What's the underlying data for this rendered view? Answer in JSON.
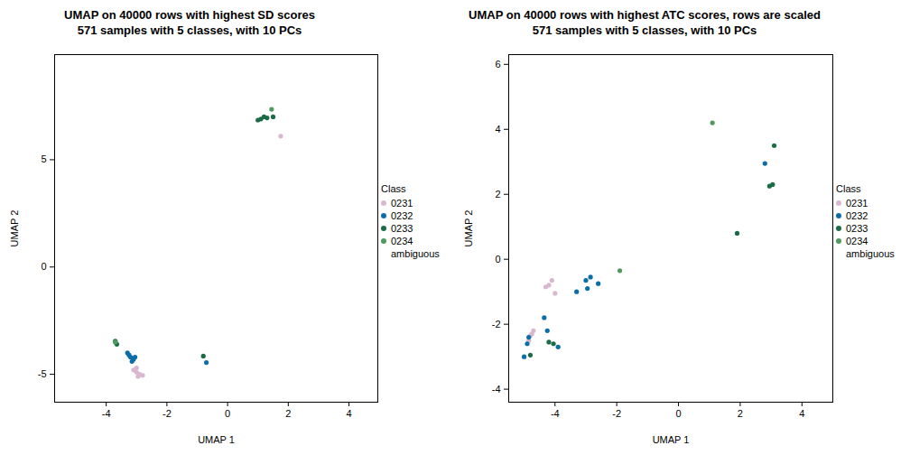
{
  "chart_data": [
    {
      "type": "scatter",
      "title": "UMAP on 40000 rows with highest SD scores",
      "subtitle": "571 samples with 5 classes, with 10 PCs",
      "xlabel": "UMAP 1",
      "ylabel": "UMAP 2",
      "legend_title": "Class",
      "xlim": [
        -5.7,
        4.95
      ],
      "ylim": [
        -6.3,
        9.9
      ],
      "xticks": [
        -4,
        -2,
        0,
        2,
        4
      ],
      "yticks": [
        -5,
        0,
        5
      ],
      "series": [
        {
          "name": "0231",
          "color": "#d9b8cf",
          "x": [
            -3.0,
            -2.9,
            -3.1,
            -2.95,
            -2.8,
            -3.0,
            1.75
          ],
          "y": [
            -4.7,
            -5.0,
            -4.8,
            -5.1,
            -5.05,
            -4.9,
            6.1
          ]
        },
        {
          "name": "0232",
          "color": "#0b6ea8",
          "x": [
            -3.3,
            -3.2,
            -3.1,
            -3.15,
            -3.05,
            -3.25,
            -0.7
          ],
          "y": [
            -4.0,
            -4.2,
            -4.3,
            -4.4,
            -4.2,
            -4.1,
            -4.45
          ]
        },
        {
          "name": "0233",
          "color": "#1b6b46",
          "x": [
            1.1,
            1.2,
            1.3,
            1.5,
            1.0,
            -0.8,
            -3.7,
            -3.65
          ],
          "y": [
            6.9,
            7.0,
            6.95,
            7.0,
            6.85,
            -4.15,
            -3.45,
            -3.6
          ]
        },
        {
          "name": "0234",
          "color": "#4f9a60",
          "x": [
            1.45,
            -3.7
          ],
          "y": [
            7.35,
            -3.5
          ]
        },
        {
          "name": "ambiguous",
          "color": "#ffffff",
          "x": [],
          "y": []
        }
      ]
    },
    {
      "type": "scatter",
      "title": "UMAP on 40000 rows with highest ATC scores, rows are scaled",
      "subtitle": "571 samples with 5 classes, with 10 PCs",
      "xlabel": "UMAP 1",
      "ylabel": "UMAP 2",
      "legend_title": "Class",
      "xlim": [
        -5.5,
        5.0
      ],
      "ylim": [
        -4.4,
        6.3
      ],
      "xticks": [
        -4,
        -2,
        0,
        2,
        4
      ],
      "yticks": [
        -4,
        -2,
        0,
        2,
        4,
        6
      ],
      "series": [
        {
          "name": "0231",
          "color": "#d9b8cf",
          "x": [
            -4.2,
            -4.1,
            -4.0,
            -4.3,
            -4.7,
            -4.75,
            -4.8,
            -4.85
          ],
          "y": [
            -0.8,
            -0.65,
            -1.05,
            -0.85,
            -2.2,
            -2.3,
            -2.35,
            -2.5
          ]
        },
        {
          "name": "0232",
          "color": "#0b6ea8",
          "x": [
            -5.0,
            -4.9,
            -4.85,
            -4.35,
            -4.25,
            -3.3,
            -3.0,
            -2.85,
            -2.95,
            -2.6,
            -3.9,
            2.8
          ],
          "y": [
            -3.0,
            -2.6,
            -2.4,
            -1.8,
            -2.2,
            -1.0,
            -0.65,
            -0.55,
            -0.9,
            -0.75,
            -2.7,
            2.95
          ]
        },
        {
          "name": "0233",
          "color": "#1b6b46",
          "x": [
            -4.8,
            -4.2,
            -4.05,
            1.9,
            2.95,
            3.05,
            3.1
          ],
          "y": [
            -2.95,
            -2.55,
            -2.6,
            0.8,
            2.25,
            2.3,
            3.5
          ]
        },
        {
          "name": "0234",
          "color": "#4f9a60",
          "x": [
            1.1,
            -1.9
          ],
          "y": [
            4.2,
            -0.35
          ]
        },
        {
          "name": "ambiguous",
          "color": "#ffffff",
          "x": [],
          "y": []
        }
      ]
    }
  ]
}
